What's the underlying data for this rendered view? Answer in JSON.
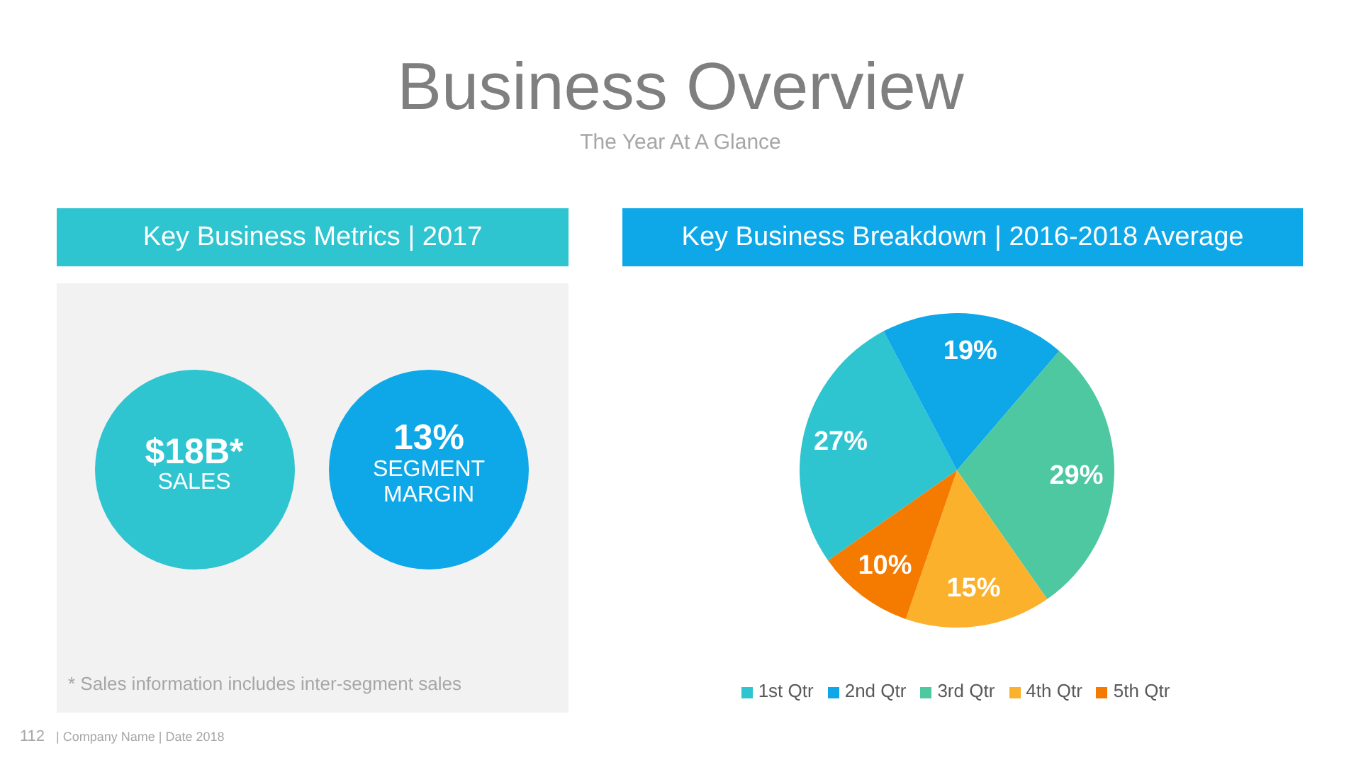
{
  "chart_data": [
    {
      "type": "other",
      "title": "Business Overview",
      "subtitle": "The Year At A Glance",
      "annotations": [
        "112",
        "| Company Name | Date 2018"
      ]
    },
    {
      "type": "other",
      "title": "Key Business Metrics | 2017",
      "annotations": [
        "$18B*",
        "SALES",
        "13%",
        "SEGMENT MARGIN",
        "* Sales information includes inter-segment sales"
      ]
    },
    {
      "type": "pie",
      "title": "Key Business Breakdown | 2016-2018 Average",
      "categories": [
        "1st Qtr",
        "2nd Qtr",
        "3rd Qtr",
        "4th Qtr",
        "5th Qtr"
      ],
      "values": [
        27,
        19,
        29,
        15,
        10
      ],
      "colors": [
        "#2ec4d0",
        "#0ea8e8",
        "#4dc8a0",
        "#fbb12c",
        "#f57a00"
      ],
      "value_labels": [
        "27%",
        "19%",
        "29%",
        "15%",
        "10%"
      ],
      "legend": "bottom"
    }
  ]
}
